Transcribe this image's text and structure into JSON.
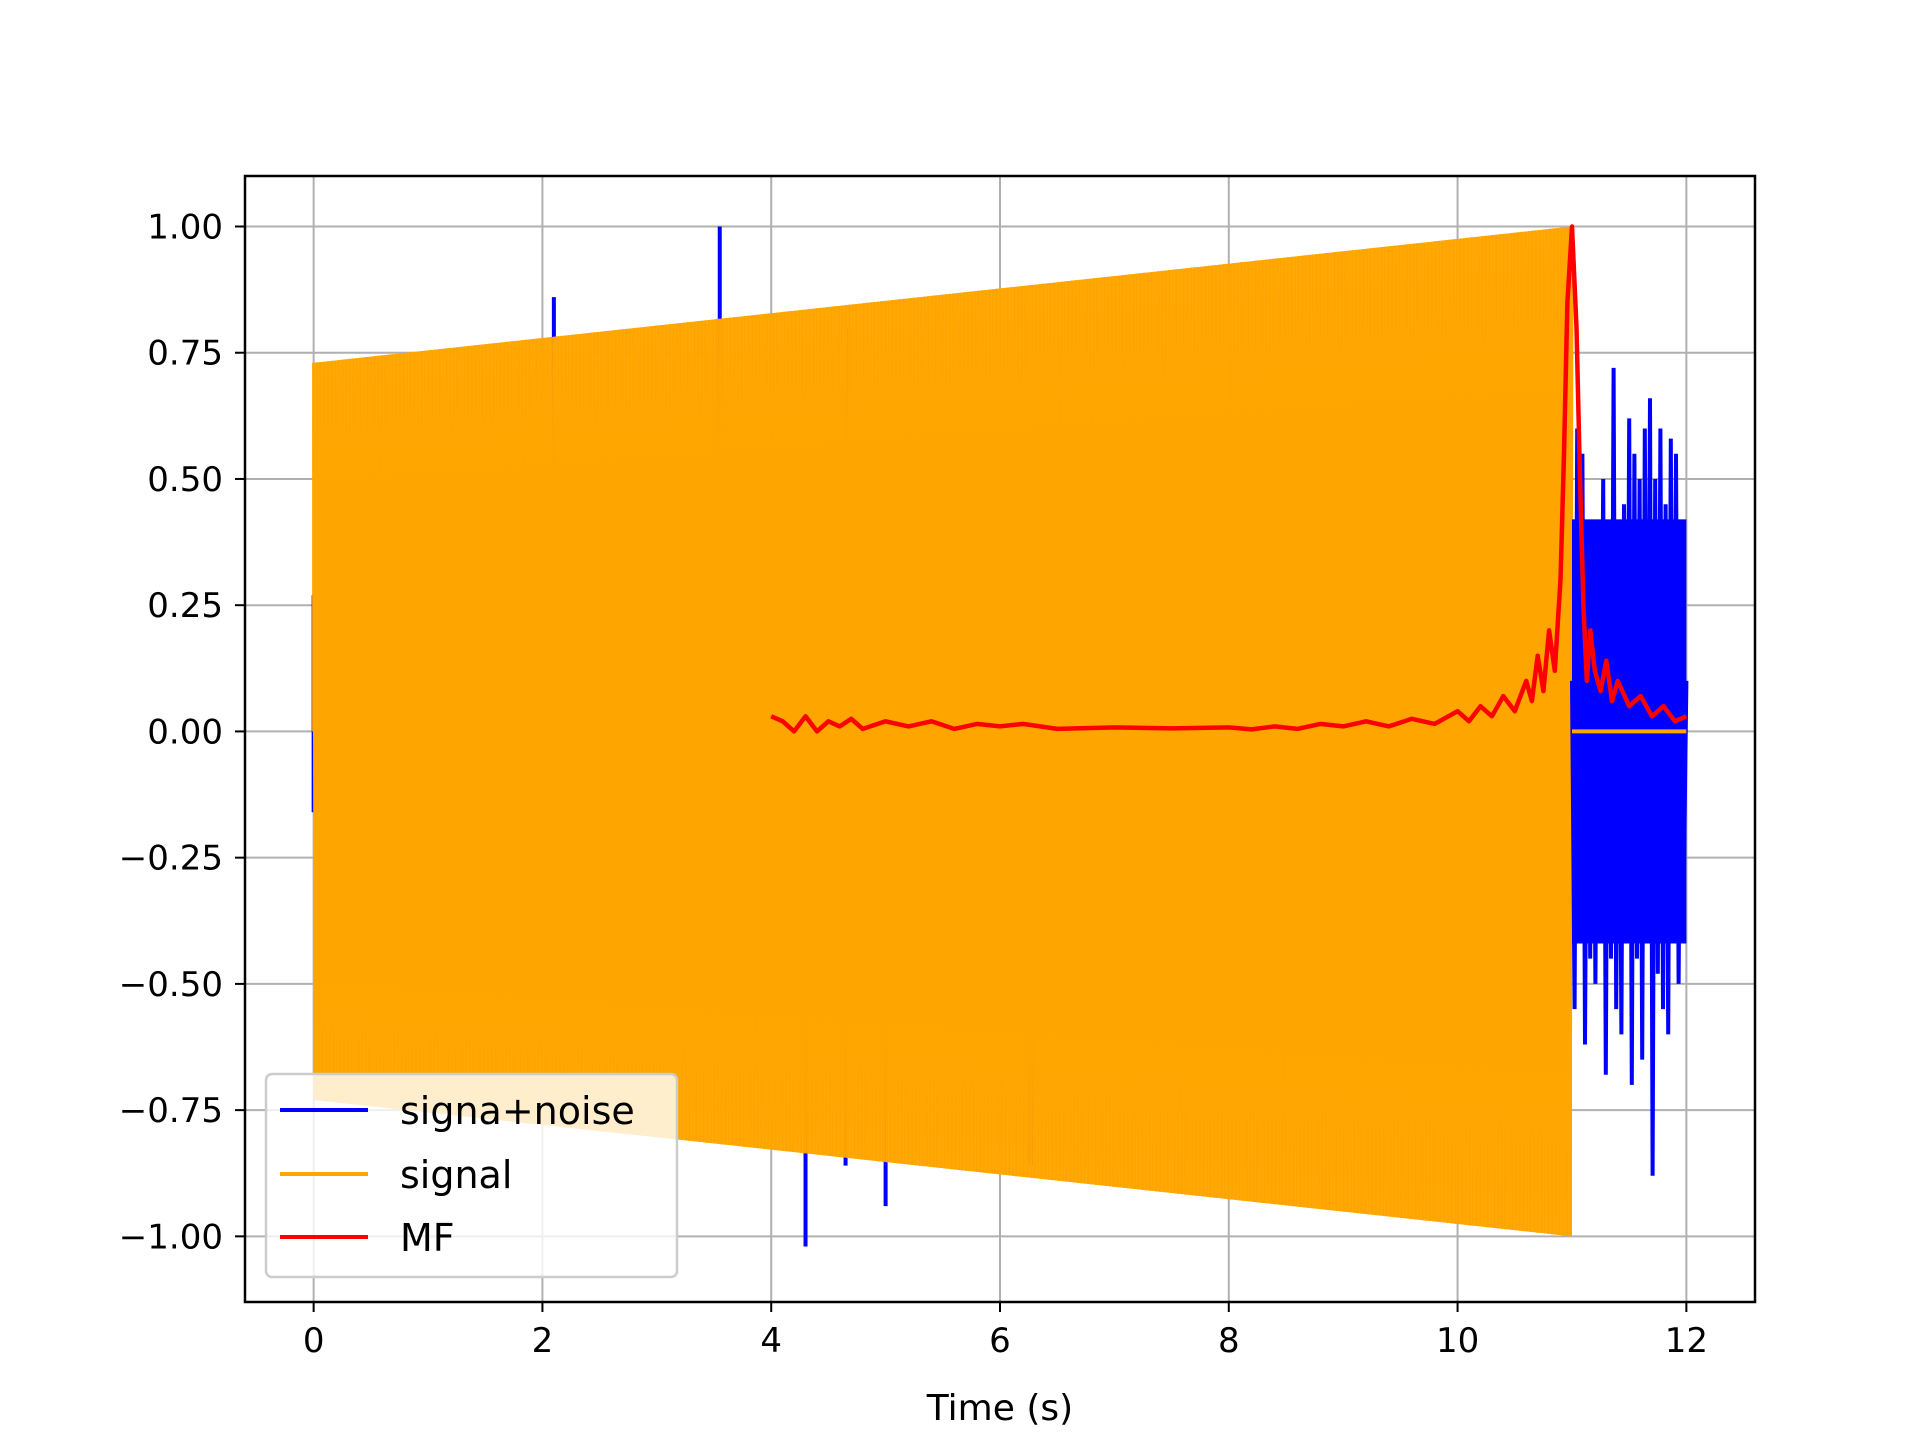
{
  "chart_data": {
    "type": "line",
    "title": "",
    "xlabel": "Time (s)",
    "ylabel": "",
    "xlim": [
      -0.6,
      12.6
    ],
    "ylim": [
      -1.13,
      1.1
    ],
    "grid": true,
    "legend_position": "lower-left",
    "xticks": [
      0,
      2,
      4,
      6,
      8,
      10,
      12
    ],
    "xtick_labels": [
      "0",
      "2",
      "4",
      "6",
      "8",
      "10",
      "12"
    ],
    "yticks": [
      1.0,
      0.75,
      0.5,
      0.25,
      0.0,
      -0.25,
      -0.5,
      -0.75,
      -1.0
    ],
    "ytick_labels": [
      "1.00",
      "0.75",
      "0.50",
      "0.25",
      "0.00",
      "−0.25",
      "−0.50",
      "−0.75",
      "−1.00"
    ],
    "series": [
      {
        "name": "signa+noise",
        "color": "#0000ff",
        "spikes": [
          {
            "x": 0.0,
            "y": 0.27
          },
          {
            "x": 0.0,
            "y": -0.16
          },
          {
            "x": 2.1,
            "y": 0.86
          },
          {
            "x": 3.55,
            "y": 1.0
          },
          {
            "x": 4.3,
            "y": -1.02
          },
          {
            "x": 4.65,
            "y": -0.86
          },
          {
            "x": 4.68,
            "y": 0.8
          },
          {
            "x": 5.0,
            "y": -0.94
          },
          {
            "x": 6.25,
            "y": -0.86
          },
          {
            "x": 6.28,
            "y": -0.86
          }
        ],
        "tail": {
          "x_start": 11.0,
          "x_end": 12.0,
          "values": [
            0.1,
            -0.55,
            0.6,
            -0.4,
            0.55,
            -0.62,
            0.3,
            -0.45,
            0.35,
            -0.5,
            0.25,
            -0.3,
            0.5,
            -0.68,
            0.4,
            -0.45,
            0.72,
            -0.55,
            0.3,
            -0.6,
            0.45,
            -0.4,
            0.62,
            -0.7,
            0.55,
            -0.45,
            0.5,
            -0.65,
            0.6,
            -0.35,
            0.66,
            -0.88,
            0.5,
            -0.48,
            0.6,
            -0.55,
            0.45,
            -0.6,
            0.58,
            -0.4,
            0.55,
            -0.5,
            0.2,
            -0.3,
            0.1
          ]
        }
      },
      {
        "name": "signal",
        "color": "#ffa500",
        "description_of_shape": "dense oscillation filling an envelope",
        "envelope_x": [
          0.0,
          11.0
        ],
        "envelope_amplitude": [
          0.73,
          1.0
        ],
        "after_x": 11.0,
        "after_value": 0.0,
        "end_x": 12.0
      },
      {
        "name": "MF",
        "color": "#ff0000",
        "x": [
          4.0,
          4.1,
          4.2,
          4.3,
          4.4,
          4.5,
          4.6,
          4.7,
          4.8,
          5.0,
          5.2,
          5.4,
          5.6,
          5.8,
          6.0,
          6.2,
          6.5,
          7.0,
          7.5,
          8.0,
          8.2,
          8.4,
          8.6,
          8.8,
          9.0,
          9.2,
          9.4,
          9.6,
          9.8,
          10.0,
          10.1,
          10.2,
          10.3,
          10.4,
          10.5,
          10.6,
          10.65,
          10.7,
          10.75,
          10.8,
          10.85,
          10.9,
          10.93,
          10.96,
          11.0,
          11.04,
          11.07,
          11.1,
          11.13,
          11.16,
          11.2,
          11.25,
          11.3,
          11.35,
          11.4,
          11.5,
          11.6,
          11.7,
          11.8,
          11.9,
          12.0
        ],
        "y": [
          0.03,
          0.02,
          0.0,
          0.03,
          0.0,
          0.02,
          0.01,
          0.025,
          0.005,
          0.02,
          0.01,
          0.02,
          0.005,
          0.015,
          0.01,
          0.015,
          0.005,
          0.008,
          0.006,
          0.008,
          0.004,
          0.01,
          0.005,
          0.015,
          0.01,
          0.02,
          0.01,
          0.025,
          0.015,
          0.04,
          0.02,
          0.05,
          0.03,
          0.07,
          0.04,
          0.1,
          0.06,
          0.15,
          0.08,
          0.2,
          0.12,
          0.3,
          0.55,
          0.85,
          1.0,
          0.8,
          0.5,
          0.25,
          0.1,
          0.2,
          0.12,
          0.08,
          0.14,
          0.06,
          0.1,
          0.05,
          0.07,
          0.03,
          0.05,
          0.02,
          0.03
        ]
      }
    ]
  }
}
